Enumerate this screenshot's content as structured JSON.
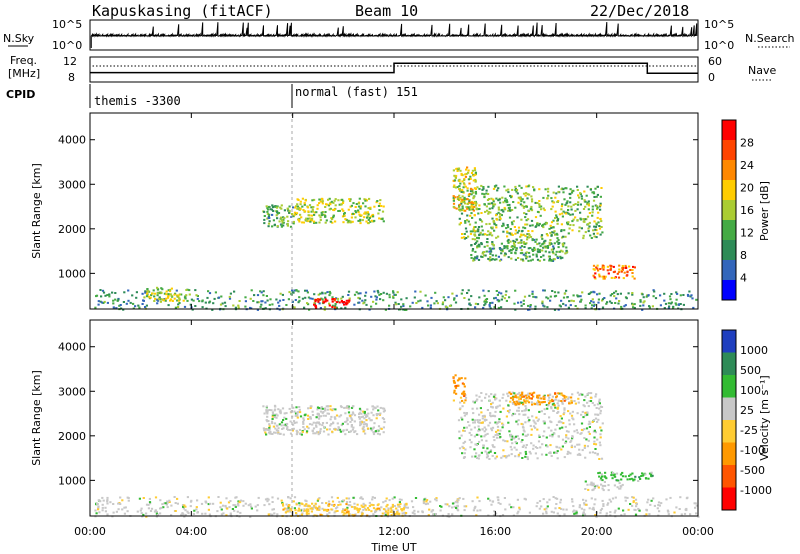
{
  "header": {
    "station": "Kapuskasing (fitACF)",
    "beam": "Beam 10",
    "date": "22/Dec/2018"
  },
  "nsky_panel": {
    "left_label": "N.Sky",
    "right_label": "N.Search",
    "left_ticks": [
      "10^5",
      "10^0"
    ],
    "right_ticks": [
      "10^5",
      "10^0"
    ]
  },
  "freq_panel": {
    "left_label_line1": "Freq.",
    "left_label_line2": "[MHz]",
    "right_label": "Nave",
    "left_ticks": [
      "12",
      "8"
    ],
    "right_ticks": [
      "60",
      "0"
    ]
  },
  "cpid": {
    "label": "CPID",
    "segments": [
      {
        "start_hour": 0.0,
        "text": "themis -3300"
      },
      {
        "start_hour": 8.0,
        "text": "normal (fast) 151"
      }
    ]
  },
  "power_panel": {
    "ylabel": "Slant Range [km]",
    "cbar_label": "Power [dB]",
    "cbar_ticks": [
      "28",
      "24",
      "20",
      "16",
      "12",
      "8",
      "4"
    ],
    "cbar_colors": [
      "#ff0000",
      "#ff4400",
      "#ff8800",
      "#ffcc00",
      "#aacc33",
      "#44aa44",
      "#2e8b57",
      "#3366bb",
      "#0000ff"
    ]
  },
  "velocity_panel": {
    "ylabel": "Slant Range [km]",
    "cbar_label": "Velocity [m s⁻¹]",
    "cbar_ticks": [
      "1000",
      "500",
      "100",
      "25",
      "-25",
      "-100",
      "-500",
      "-1000"
    ],
    "cbar_colors": [
      "#1f3fbf",
      "#2e8b57",
      "#33bb33",
      "#c8c8c8",
      "#ffcc33",
      "#ff9900",
      "#ff5500",
      "#ff0000"
    ]
  },
  "chart_data": [
    {
      "type": "heatmap",
      "name": "power",
      "ylabel": "Slant Range [km]",
      "xlabel": "Time UT",
      "xlim": [
        0,
        24
      ],
      "ylim": [
        200,
        4600
      ],
      "x_ticks": [
        "00:00",
        "04:00",
        "08:00",
        "12:00",
        "16:00",
        "20:00",
        "00:00"
      ],
      "y_ticks": [
        1000,
        2000,
        3000,
        4000
      ],
      "regions": [
        {
          "t0": 0.1,
          "t1": 24.0,
          "r0": 200,
          "r1": 650,
          "level": 8
        },
        {
          "t0": 2.2,
          "t1": 3.8,
          "r0": 400,
          "r1": 700,
          "level": 14
        },
        {
          "t0": 8.8,
          "t1": 10.2,
          "r0": 250,
          "r1": 450,
          "level": 28
        },
        {
          "t0": 6.8,
          "t1": 8.0,
          "r0": 2050,
          "r1": 2550,
          "level": 10
        },
        {
          "t0": 8.0,
          "t1": 11.6,
          "r0": 2150,
          "r1": 2700,
          "level": 14
        },
        {
          "t0": 14.5,
          "t1": 20.2,
          "r0": 1800,
          "r1": 3000,
          "level": 12
        },
        {
          "t0": 15.0,
          "t1": 18.8,
          "r0": 1300,
          "r1": 1800,
          "level": 10
        },
        {
          "t0": 19.8,
          "t1": 21.5,
          "r0": 900,
          "r1": 1200,
          "level": 22
        },
        {
          "t0": 14.3,
          "t1": 15.2,
          "r0": 2400,
          "r1": 3400,
          "level": 16
        }
      ]
    },
    {
      "type": "heatmap",
      "name": "velocity",
      "ylabel": "Slant Range [km]",
      "xlabel": "Time UT",
      "xlim": [
        0,
        24
      ],
      "ylim": [
        200,
        4600
      ],
      "x_ticks": [
        "00:00",
        "04:00",
        "08:00",
        "12:00",
        "16:00",
        "20:00",
        "00:00"
      ],
      "y_ticks": [
        1000,
        2000,
        3000,
        4000
      ],
      "regions": [
        {
          "t0": 0.1,
          "t1": 24.0,
          "r0": 200,
          "r1": 650,
          "value": 50
        },
        {
          "t0": 7.5,
          "t1": 12.5,
          "r0": 220,
          "r1": 500,
          "value": -50
        },
        {
          "t0": 6.8,
          "t1": 11.6,
          "r0": 2050,
          "r1": 2700,
          "value": 0
        },
        {
          "t0": 14.5,
          "t1": 20.2,
          "r0": 1500,
          "r1": 3000,
          "value": 0
        },
        {
          "t0": 16.5,
          "t1": 19.0,
          "r0": 2700,
          "r1": 3000,
          "value": -200
        },
        {
          "t0": 14.3,
          "t1": 14.8,
          "r0": 2800,
          "r1": 3400,
          "value": -200
        },
        {
          "t0": 20.0,
          "t1": 22.2,
          "r0": 1000,
          "r1": 1200,
          "value": 100
        },
        {
          "t0": 19.5,
          "t1": 21.0,
          "r0": 800,
          "r1": 1000,
          "value": 50
        }
      ]
    },
    {
      "type": "line",
      "name": "frequency",
      "ylabel": "Freq. [MHz]",
      "ylim": [
        8,
        12
      ],
      "series": [
        {
          "name": "Freq.",
          "x": [
            0,
            12,
            12,
            22,
            22,
            24
          ],
          "y": [
            9.5,
            9.5,
            11.0,
            11.0,
            9.4,
            9.4
          ]
        }
      ]
    }
  ],
  "xaxis": {
    "label": "Time UT",
    "ticks": [
      "00:00",
      "04:00",
      "08:00",
      "12:00",
      "16:00",
      "20:00",
      "00:00"
    ]
  }
}
